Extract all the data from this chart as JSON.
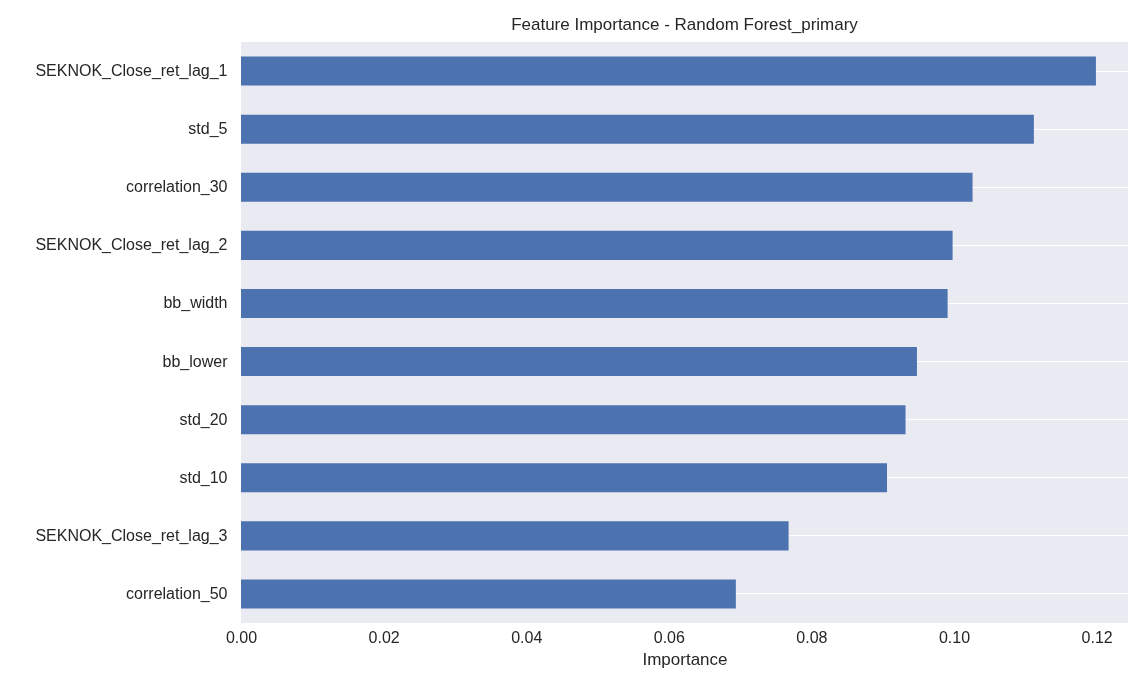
{
  "chart_data": {
    "type": "bar",
    "orientation": "horizontal",
    "title": "Feature Importance - Random Forest_primary",
    "xlabel": "Importance",
    "categories": [
      "SEKNOK_Close_ret_lag_1",
      "std_5",
      "correlation_30",
      "SEKNOK_Close_ret_lag_2",
      "bb_width",
      "bb_lower",
      "std_20",
      "std_10",
      "SEKNOK_Close_ret_lag_3",
      "correlation_50"
    ],
    "values": [
      0.1199,
      0.1112,
      0.1026,
      0.0998,
      0.0991,
      0.0948,
      0.0932,
      0.0906,
      0.0768,
      0.0694
    ],
    "color": "#4c72b0",
    "xlim": [
      0,
      0.1244
    ],
    "xticks": [
      {
        "value": 0,
        "label": "0.00"
      },
      {
        "value": 0.02,
        "label": "0.02"
      },
      {
        "value": 0.04,
        "label": "0.04"
      },
      {
        "value": 0.06,
        "label": "0.06"
      },
      {
        "value": 0.08,
        "label": "0.08"
      },
      {
        "value": 0.1,
        "label": "0.10"
      },
      {
        "value": 0.12,
        "label": "0.12"
      }
    ],
    "grid": "y"
  }
}
